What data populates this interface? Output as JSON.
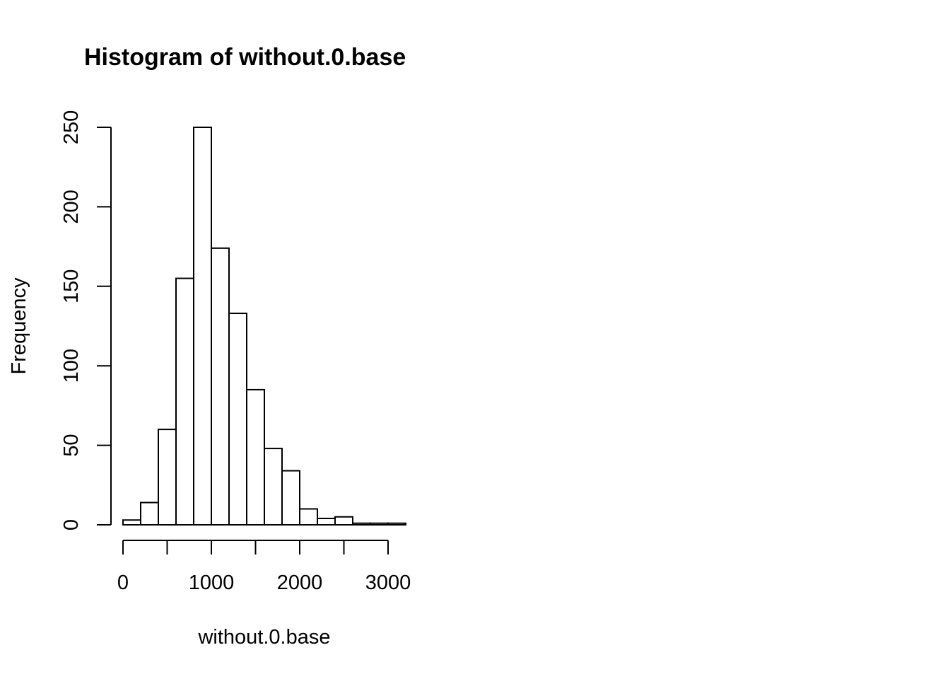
{
  "chart_data": {
    "type": "bar",
    "title": "Histogram of without.0.base",
    "xlabel": "without.0.base",
    "ylabel": "Frequency",
    "bin_width": 200,
    "bins": [
      {
        "x0": 0,
        "x1": 200,
        "count": 3
      },
      {
        "x0": 200,
        "x1": 400,
        "count": 14
      },
      {
        "x0": 400,
        "x1": 600,
        "count": 60
      },
      {
        "x0": 600,
        "x1": 800,
        "count": 155
      },
      {
        "x0": 800,
        "x1": 1000,
        "count": 250
      },
      {
        "x0": 1000,
        "x1": 1200,
        "count": 174
      },
      {
        "x0": 1200,
        "x1": 1400,
        "count": 133
      },
      {
        "x0": 1400,
        "x1": 1600,
        "count": 85
      },
      {
        "x0": 1600,
        "x1": 1800,
        "count": 48
      },
      {
        "x0": 1800,
        "x1": 2000,
        "count": 34
      },
      {
        "x0": 2000,
        "x1": 2200,
        "count": 10
      },
      {
        "x0": 2200,
        "x1": 2400,
        "count": 4
      },
      {
        "x0": 2400,
        "x1": 2600,
        "count": 5
      },
      {
        "x0": 2600,
        "x1": 2800,
        "count": 1
      },
      {
        "x0": 2800,
        "x1": 3000,
        "count": 1
      },
      {
        "x0": 3000,
        "x1": 3200,
        "count": 1
      }
    ],
    "xticks": [
      0,
      500,
      1000,
      1500,
      2000,
      2500,
      3000
    ],
    "xtick_labels": [
      "0",
      "",
      "1000",
      "",
      "2000",
      "",
      "3000"
    ],
    "yticks": [
      0,
      50,
      100,
      150,
      200,
      250
    ],
    "ytick_labels": [
      "0",
      "50",
      "100",
      "150",
      "200",
      "250"
    ],
    "xlim": [
      0,
      3200
    ],
    "ylim": [
      0,
      250
    ],
    "grid": false
  }
}
